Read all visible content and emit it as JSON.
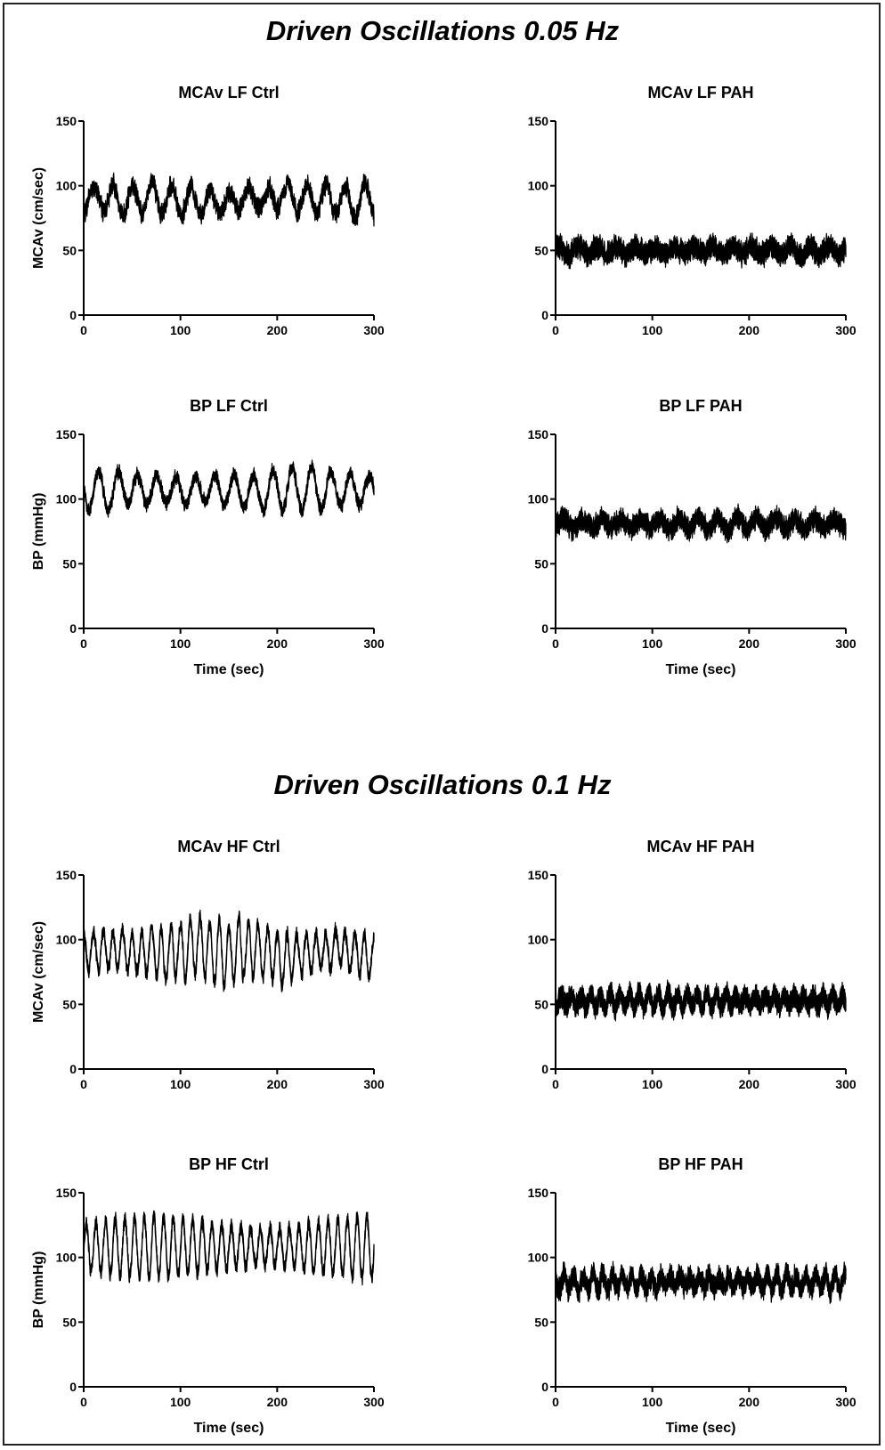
{
  "sections": [
    {
      "title": "Driven Oscillations 0.05 Hz"
    },
    {
      "title": "Driven Oscillations 0.1 Hz"
    }
  ],
  "chart_data": [
    {
      "type": "line",
      "title": "MCAv LF Ctrl",
      "xlabel": "",
      "ylabel": "MCAv (cm/sec)",
      "xlim": [
        0,
        300
      ],
      "ylim": [
        0,
        150
      ],
      "xticks": [
        "0",
        "100",
        "200",
        "300"
      ],
      "yticks": [
        "0",
        "50",
        "100",
        "150"
      ],
      "grid": false,
      "signal": {
        "mean": 90,
        "osc_amp": 10,
        "period_sec": 20,
        "noise": 5,
        "band": 6,
        "drift": 3
      }
    },
    {
      "type": "line",
      "title": "MCAv LF PAH",
      "xlabel": "",
      "ylabel": "",
      "xlim": [
        0,
        300
      ],
      "ylim": [
        0,
        150
      ],
      "xticks": [
        "0",
        "100",
        "200",
        "300"
      ],
      "yticks": [
        "0",
        "50",
        "100",
        "150"
      ],
      "grid": false,
      "signal": {
        "mean": 50,
        "osc_amp": 3,
        "period_sec": 20,
        "noise": 4,
        "band": 10,
        "drift": 0
      }
    },
    {
      "type": "line",
      "title": "BP LF Ctrl",
      "xlabel": "Time (sec)",
      "ylabel": "BP (mmHg)",
      "xlim": [
        0,
        300
      ],
      "ylim": [
        0,
        150
      ],
      "xticks": [
        "0",
        "100",
        "200",
        "300"
      ],
      "yticks": [
        "0",
        "50",
        "100",
        "150"
      ],
      "grid": false,
      "signal": {
        "mean": 107,
        "osc_amp": 13,
        "period_sec": 20,
        "noise": 3,
        "band": 5,
        "drift": 2
      }
    },
    {
      "type": "line",
      "title": "BP LF PAH",
      "xlabel": "Time (sec)",
      "ylabel": "",
      "xlim": [
        0,
        300
      ],
      "ylim": [
        0,
        150
      ],
      "xticks": [
        "0",
        "100",
        "200",
        "300"
      ],
      "yticks": [
        "0",
        "50",
        "100",
        "150"
      ],
      "grid": false,
      "signal": {
        "mean": 81,
        "osc_amp": 4,
        "period_sec": 20,
        "noise": 4,
        "band": 9,
        "drift": 0
      }
    },
    {
      "type": "line",
      "title": "MCAv HF Ctrl",
      "xlabel": "",
      "ylabel": "MCAv (cm/sec)",
      "xlim": [
        0,
        300
      ],
      "ylim": [
        0,
        150
      ],
      "xticks": [
        "0",
        "100",
        "200",
        "300"
      ],
      "yticks": [
        "0",
        "50",
        "100",
        "150"
      ],
      "grid": false,
      "signal": {
        "mean": 90,
        "osc_amp": 19,
        "period_sec": 10,
        "noise": 3,
        "band": 5,
        "drift": 6
      }
    },
    {
      "type": "line",
      "title": "MCAv HF PAH",
      "xlabel": "",
      "ylabel": "",
      "xlim": [
        0,
        300
      ],
      "ylim": [
        0,
        150
      ],
      "xticks": [
        "0",
        "100",
        "200",
        "300"
      ],
      "yticks": [
        "0",
        "50",
        "100",
        "150"
      ],
      "grid": false,
      "signal": {
        "mean": 53,
        "osc_amp": 5,
        "period_sec": 10,
        "noise": 3,
        "band": 11,
        "drift": 0
      }
    },
    {
      "type": "line",
      "title": "BP HF Ctrl",
      "xlabel": "Time (sec)",
      "ylabel": "BP (mmHg)",
      "xlim": [
        0,
        300
      ],
      "ylim": [
        0,
        150
      ],
      "xticks": [
        "0",
        "100",
        "200",
        "300"
      ],
      "yticks": [
        "0",
        "50",
        "100",
        "150"
      ],
      "grid": false,
      "signal": {
        "mean": 108,
        "osc_amp": 19,
        "period_sec": 10,
        "noise": 3,
        "band": 5,
        "drift": 0
      }
    },
    {
      "type": "line",
      "title": "BP HF PAH",
      "xlabel": "Time (sec)",
      "ylabel": "",
      "xlim": [
        0,
        300
      ],
      "ylim": [
        0,
        150
      ],
      "xticks": [
        "0",
        "100",
        "200",
        "300"
      ],
      "yticks": [
        "0",
        "50",
        "100",
        "150"
      ],
      "grid": false,
      "signal": {
        "mean": 81,
        "osc_amp": 5,
        "period_sec": 10,
        "noise": 4,
        "band": 10,
        "drift": 0
      }
    }
  ]
}
